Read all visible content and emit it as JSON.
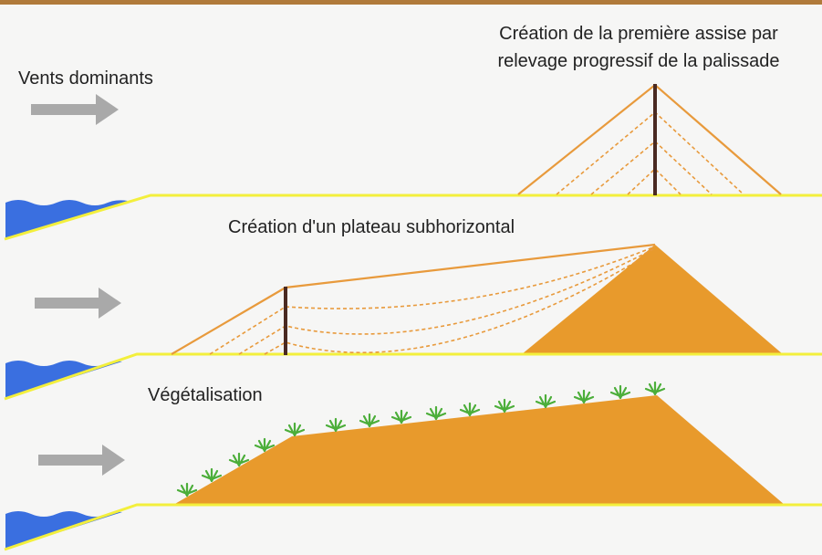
{
  "wind_label": "Vents dominants",
  "panels": [
    {
      "caption": [
        "Création de la première assise par",
        "relevage progressif de la palissade"
      ]
    },
    {
      "caption": [
        "Création d'un plateau subhorizontal"
      ]
    },
    {
      "caption": [
        "Végétalisation"
      ]
    }
  ]
}
